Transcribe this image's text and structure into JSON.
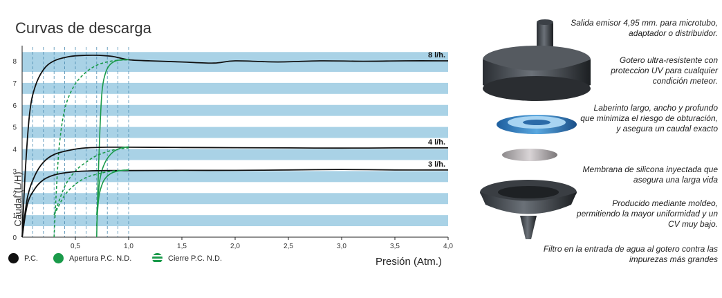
{
  "chart_data": {
    "type": "line",
    "title": "Curvas de descarga",
    "xlabel": "Presión (Atm.)",
    "ylabel": "Caudal (L/H)",
    "xlim": [
      0,
      4.0
    ],
    "ylim": [
      0,
      8.4
    ],
    "x_ticks": [
      "0,5",
      "1,0",
      "1,5",
      "2,0",
      "2,5",
      "3,0",
      "3,5",
      "4,0"
    ],
    "y_ticks": [
      "0",
      "1",
      "2",
      "3",
      "4",
      "5",
      "6",
      "7",
      "8"
    ],
    "legend": {
      "placement": "bottom-left",
      "entries": [
        "P.C.",
        "Apertura P.C. N.D.",
        "Cierre P.C. N.D."
      ]
    },
    "series_labels": [
      "8 l/h.",
      "4 l/h.",
      "3 l/h."
    ],
    "series": [
      {
        "name": "8 l/h.",
        "style": "P.C.",
        "color": "#111111",
        "dash": false,
        "x": [
          0,
          0.03,
          0.07,
          0.12,
          0.2,
          0.3,
          0.45,
          0.6,
          0.72,
          0.85,
          1.0,
          1.2,
          1.5,
          1.8,
          2.0,
          2.4,
          2.8,
          3.2,
          3.6,
          4.0
        ],
        "y": [
          0,
          3.0,
          5.6,
          6.8,
          7.6,
          8.0,
          8.2,
          8.25,
          8.25,
          8.2,
          8.05,
          8.0,
          7.95,
          7.9,
          8.0,
          7.95,
          8.0,
          7.98,
          8.0,
          8.0
        ]
      },
      {
        "name": "",
        "style": "Apertura P.C. N.D.",
        "color": "#1a9a4a",
        "dash": false,
        "x": [
          0.7,
          0.71,
          0.73,
          0.75,
          0.78,
          0.82,
          0.88,
          0.95,
          1.0
        ],
        "y": [
          0,
          2.0,
          4.8,
          6.6,
          7.4,
          7.8,
          8.0,
          8.05,
          8.05
        ]
      },
      {
        "name": "",
        "style": "Cierre P.C. N.D.",
        "color": "#1a9a4a",
        "dash": true,
        "x": [
          0.3,
          0.32,
          0.35,
          0.4,
          0.48,
          0.58,
          0.7,
          0.85,
          1.0
        ],
        "y": [
          0,
          2.0,
          4.2,
          5.8,
          6.8,
          7.4,
          7.8,
          8.0,
          8.05
        ]
      },
      {
        "name": "4 l/h.",
        "style": "P.C.",
        "color": "#111111",
        "dash": false,
        "x": [
          0,
          0.05,
          0.12,
          0.2,
          0.3,
          0.45,
          0.6,
          0.8,
          1.0,
          1.5,
          2.0,
          2.5,
          3.0,
          3.5,
          4.0
        ],
        "y": [
          0,
          1.8,
          2.8,
          3.4,
          3.75,
          3.95,
          4.05,
          4.08,
          4.08,
          4.07,
          4.06,
          4.05,
          4.04,
          4.05,
          4.05
        ]
      },
      {
        "name": "",
        "style": "Apertura P.C. N.D.",
        "color": "#1a9a4a",
        "dash": false,
        "x": [
          0.7,
          0.73,
          0.78,
          0.85,
          0.93,
          1.0
        ],
        "y": [
          1.0,
          2.6,
          3.4,
          3.85,
          4.05,
          4.1
        ]
      },
      {
        "name": "",
        "style": "Cierre P.C. N.D.",
        "color": "#1a9a4a",
        "dash": true,
        "x": [
          0.3,
          0.4,
          0.5,
          0.6,
          0.7,
          0.85,
          1.0
        ],
        "y": [
          1.0,
          2.3,
          3.0,
          3.4,
          3.7,
          3.95,
          4.05
        ]
      },
      {
        "name": "3 l/h.",
        "style": "P.C.",
        "color": "#111111",
        "dash": false,
        "x": [
          0,
          0.05,
          0.12,
          0.2,
          0.3,
          0.45,
          0.6,
          0.8,
          1.0,
          1.5,
          2.0,
          2.5,
          3.0,
          3.5,
          4.0
        ],
        "y": [
          0,
          1.5,
          2.2,
          2.6,
          2.82,
          2.95,
          3.0,
          3.02,
          3.02,
          3.03,
          3.03,
          3.05,
          3.07,
          3.05,
          3.05
        ]
      },
      {
        "name": "",
        "style": "Apertura P.C. N.D.",
        "color": "#1a9a4a",
        "dash": false,
        "x": [
          0.7,
          0.72,
          0.76,
          0.82,
          0.9,
          1.0
        ],
        "y": [
          0.5,
          1.8,
          2.5,
          2.85,
          3.0,
          3.05
        ]
      },
      {
        "name": "",
        "style": "Cierre P.C. N.D.",
        "color": "#1a9a4a",
        "dash": true,
        "x": [
          0.3,
          0.4,
          0.5,
          0.6,
          0.72,
          0.85,
          1.0
        ],
        "y": [
          1.0,
          1.9,
          2.4,
          2.7,
          2.88,
          3.0,
          3.05
        ]
      }
    ]
  },
  "descriptions": [
    "Salida emisor 4,95 mm. para microtubo, adaptador o distribuidor.",
    "Gotero ultra-resistente con proteccion UV para cualquier condición meteor.",
    "Laberinto largo, ancho y profundo que minimiza el riesgo de obturación, y asegura un caudal exacto",
    "Membrana de silicona inyectada que asegura una larga vida",
    "Producido mediante moldeo, permitiendo la mayor uniformidad y un CV muy bajo.",
    "Filtro en la entrada de agua al gotero contra las impurezas más grandes"
  ],
  "colors": {
    "band": "#a9d2e6",
    "pc": "#111111",
    "green": "#1a9a4a"
  }
}
